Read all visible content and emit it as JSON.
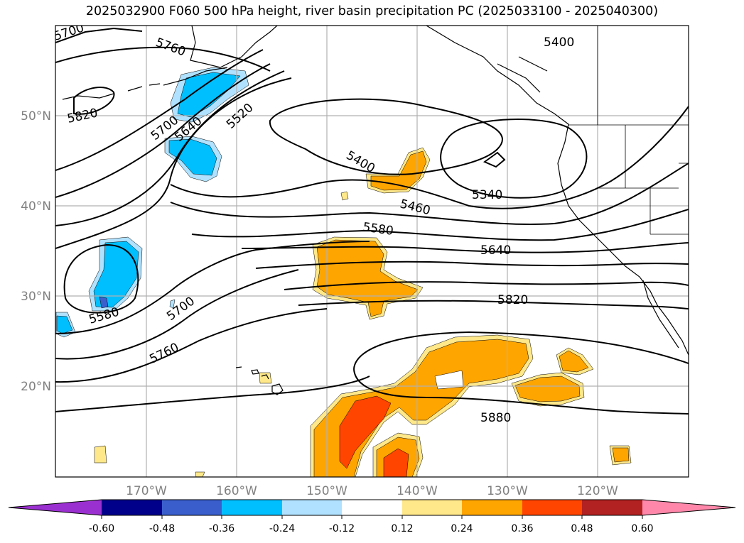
{
  "title": "2025032900 F060 500 hPa height, river basin precipitation PC (2025033100 - 2025040300)",
  "lat_ticks": [
    "50°N",
    "40°N",
    "30°N",
    "20°N"
  ],
  "lon_ticks": [
    "170°W",
    "160°W",
    "150°W",
    "140°W",
    "130°W",
    "120°W"
  ],
  "contour_labels": [
    "5700",
    "5760",
    "5820",
    "5400",
    "5700",
    "5640",
    "5520",
    "5400",
    "5340",
    "5460",
    "5580",
    "5640",
    "5580",
    "5700",
    "5820",
    "5760",
    "5880"
  ],
  "colorbar": {
    "colors": [
      "#9b30d0",
      "#00008b",
      "#3a5fcd",
      "#00bfff",
      "#b0e2ff",
      "#ffffff",
      "#ffe88a",
      "#ffa500",
      "#ff4500",
      "#b22222",
      "#ff88aa"
    ],
    "tick_labels": [
      "-0.60",
      "-0.48",
      "-0.36",
      "-0.24",
      "-0.12",
      "0.12",
      "0.24",
      "0.36",
      "0.48",
      "0.60"
    ]
  },
  "field_colors": {
    "neg_light": "#b0e2ff",
    "neg_mid": "#00bfff",
    "neg_strong": "#3a5fcd",
    "pos_light": "#ffe88a",
    "pos_mid": "#ffa500",
    "pos_strong": "#ff4500"
  }
}
